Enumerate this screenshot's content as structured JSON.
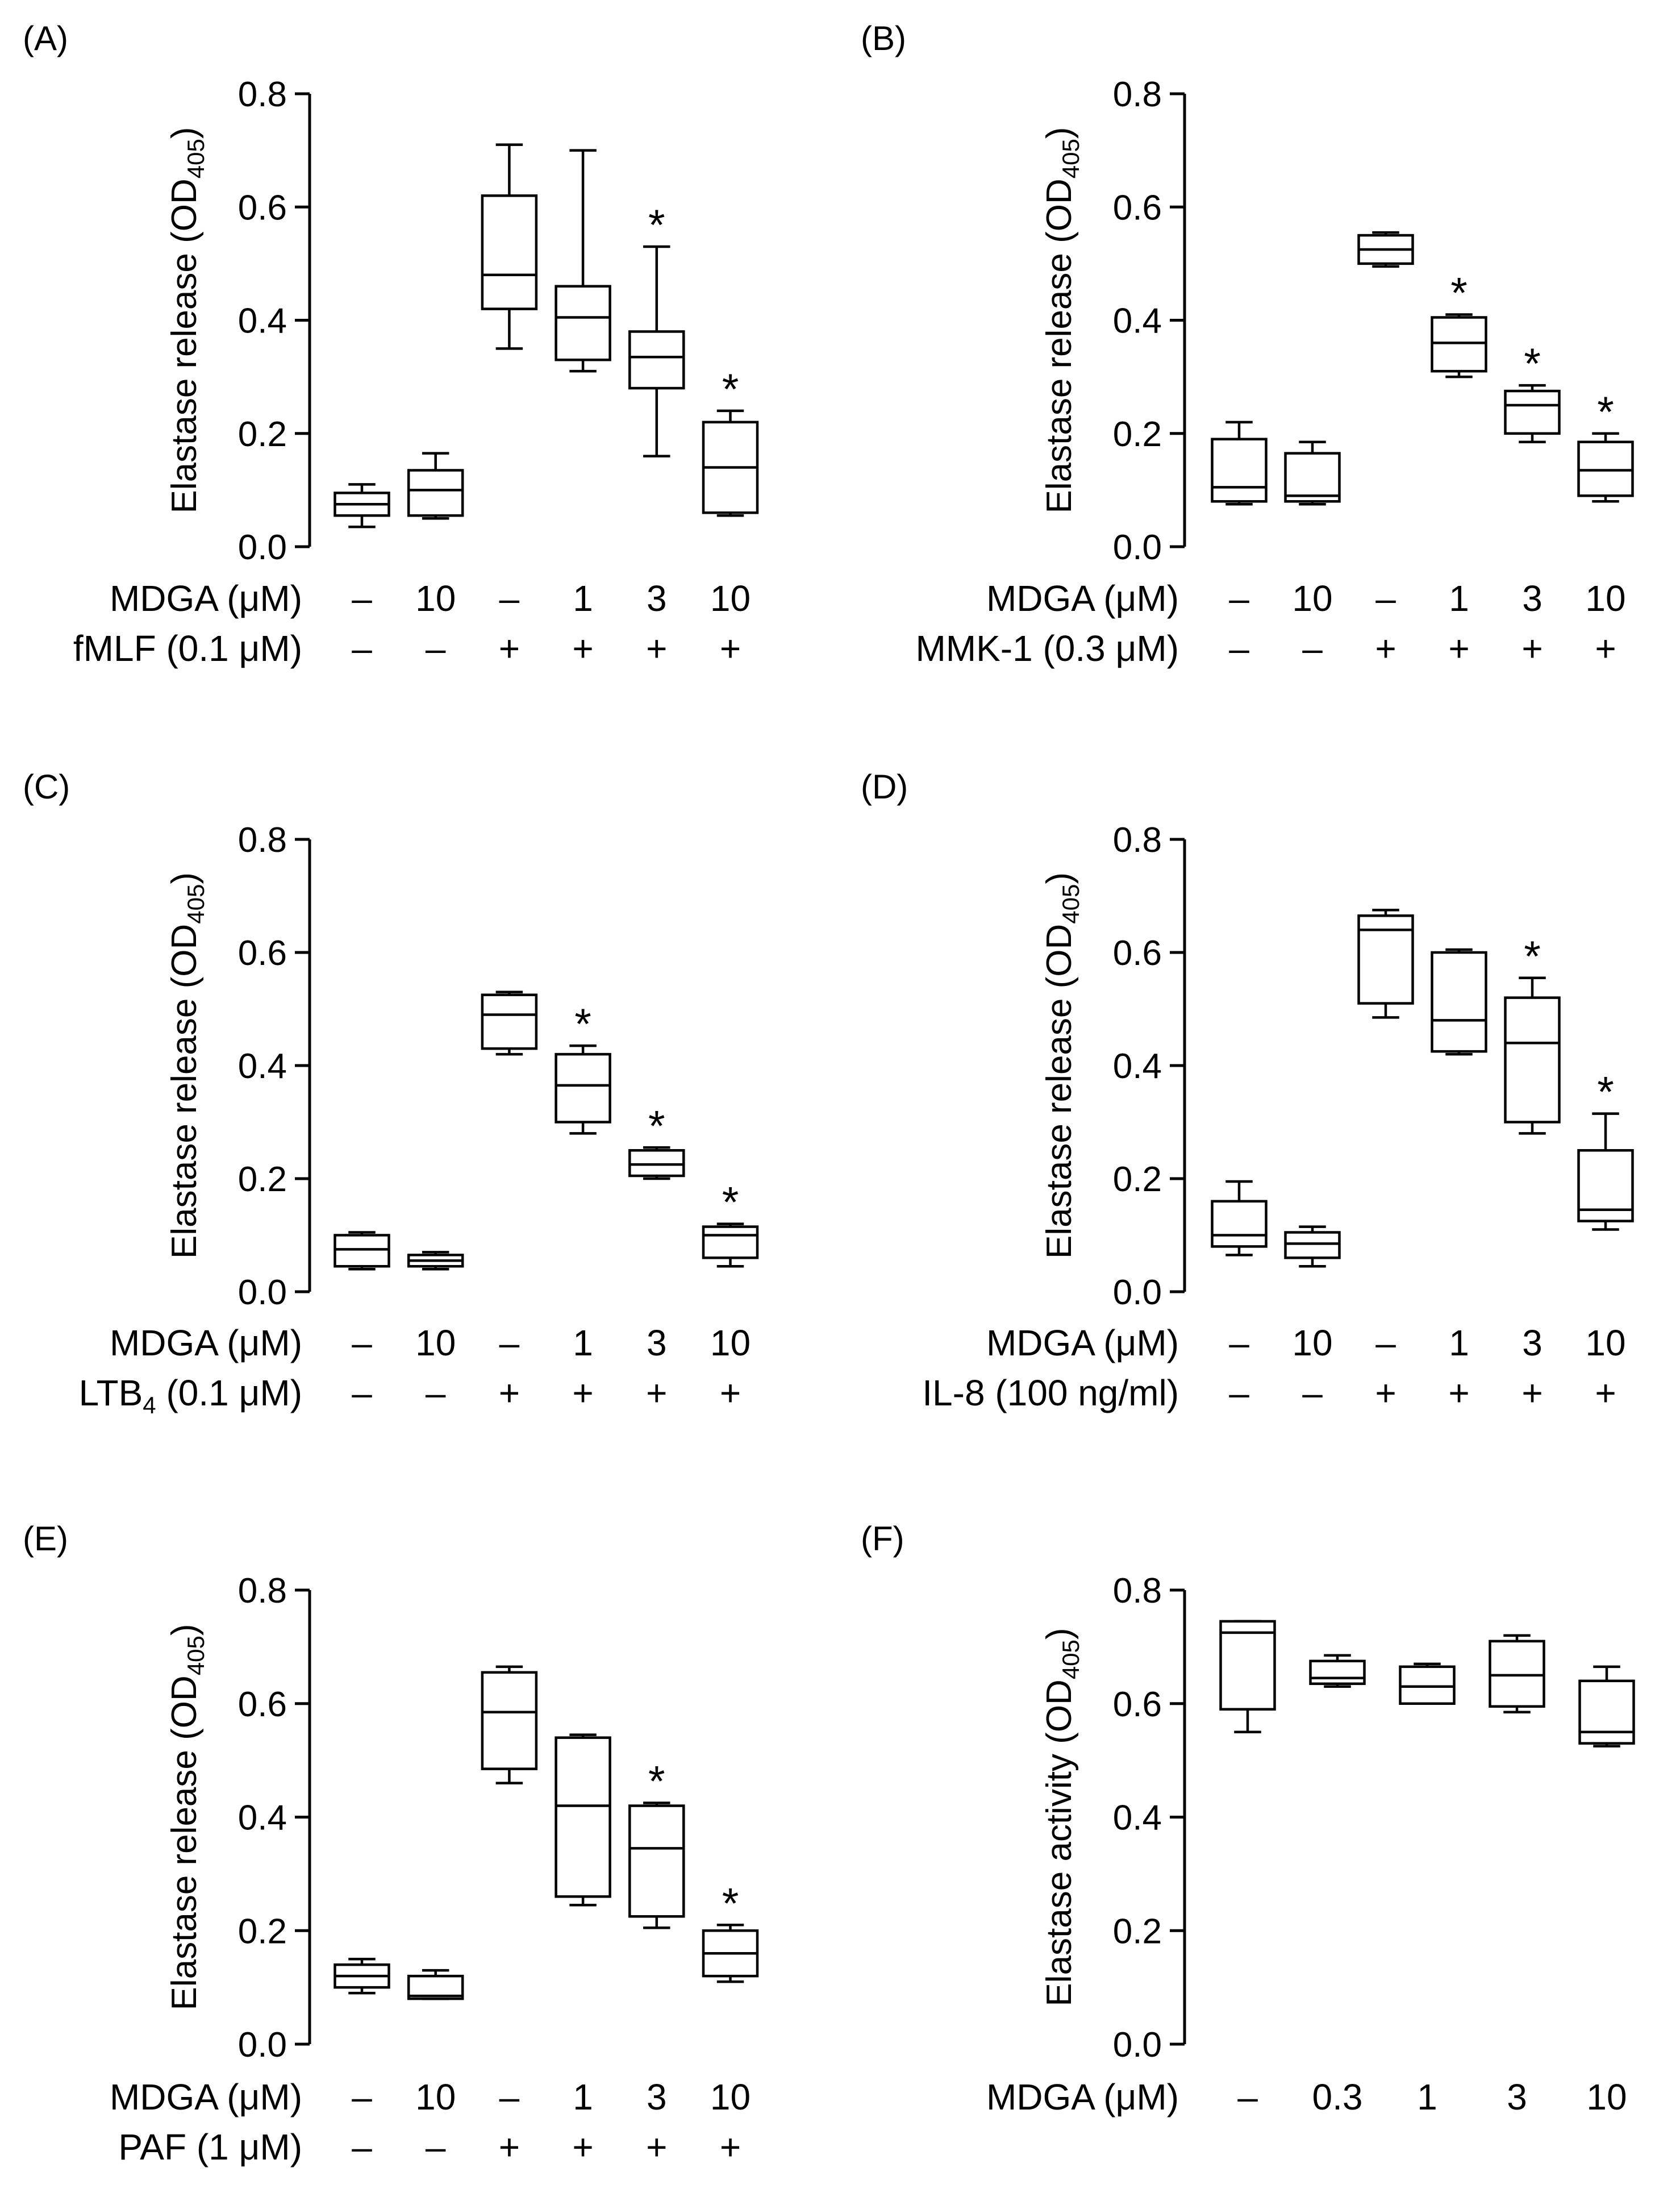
{
  "chart_data": [
    {
      "panel": "(A)",
      "type": "boxplot",
      "ylabel": "Elastase release (OD",
      "ylabel_sub": "405",
      "ylabel_end": ")",
      "ylim": [
        0,
        0.8
      ],
      "yticks": [
        "0.0",
        "0.2",
        "0.4",
        "0.6",
        "0.8"
      ],
      "rows": [
        {
          "label": "MDGA (μM)",
          "values": [
            "–",
            "10",
            "–",
            "1",
            "3",
            "10"
          ]
        },
        {
          "label": "fMLF (0.1 μM)",
          "values": [
            "–",
            "–",
            "+",
            "+",
            "+",
            "+"
          ]
        }
      ],
      "boxes": [
        {
          "min": 0.035,
          "q1": 0.055,
          "median": 0.075,
          "q3": 0.095,
          "max": 0.11,
          "sig": ""
        },
        {
          "min": 0.05,
          "q1": 0.055,
          "median": 0.1,
          "q3": 0.135,
          "max": 0.165,
          "sig": ""
        },
        {
          "min": 0.35,
          "q1": 0.42,
          "median": 0.48,
          "q3": 0.62,
          "max": 0.71,
          "sig": ""
        },
        {
          "min": 0.31,
          "q1": 0.33,
          "median": 0.405,
          "q3": 0.46,
          "max": 0.7,
          "sig": ""
        },
        {
          "min": 0.16,
          "q1": 0.28,
          "median": 0.335,
          "q3": 0.38,
          "max": 0.53,
          "sig": "*"
        },
        {
          "min": 0.055,
          "q1": 0.06,
          "median": 0.14,
          "q3": 0.22,
          "max": 0.24,
          "sig": "*"
        }
      ]
    },
    {
      "panel": "(B)",
      "type": "boxplot",
      "ylabel": "Elastase release (OD",
      "ylabel_sub": "405",
      "ylabel_end": ")",
      "ylim": [
        0,
        0.8
      ],
      "yticks": [
        "0.0",
        "0.2",
        "0.4",
        "0.6",
        "0.8"
      ],
      "rows": [
        {
          "label": "MDGA (μM)",
          "values": [
            "–",
            "10",
            "–",
            "1",
            "3",
            "10"
          ]
        },
        {
          "label": "MMK-1 (0.3 μM)",
          "values": [
            "–",
            "–",
            "+",
            "+",
            "+",
            "+"
          ]
        }
      ],
      "boxes": [
        {
          "min": 0.075,
          "q1": 0.08,
          "median": 0.105,
          "q3": 0.19,
          "max": 0.22,
          "sig": ""
        },
        {
          "min": 0.075,
          "q1": 0.08,
          "median": 0.09,
          "q3": 0.165,
          "max": 0.185,
          "sig": ""
        },
        {
          "min": 0.495,
          "q1": 0.5,
          "median": 0.525,
          "q3": 0.55,
          "max": 0.555,
          "sig": ""
        },
        {
          "min": 0.3,
          "q1": 0.31,
          "median": 0.36,
          "q3": 0.405,
          "max": 0.41,
          "sig": "*"
        },
        {
          "min": 0.185,
          "q1": 0.2,
          "median": 0.25,
          "q3": 0.275,
          "max": 0.285,
          "sig": "*"
        },
        {
          "min": 0.08,
          "q1": 0.09,
          "median": 0.135,
          "q3": 0.185,
          "max": 0.2,
          "sig": "*"
        }
      ]
    },
    {
      "panel": "(C)",
      "type": "boxplot",
      "ylabel": "Elastase release (OD",
      "ylabel_sub": "405",
      "ylabel_end": ")",
      "ylim": [
        0,
        0.8
      ],
      "yticks": [
        "0.0",
        "0.2",
        "0.4",
        "0.6",
        "0.8"
      ],
      "rows": [
        {
          "label": "MDGA (μM)",
          "values": [
            "–",
            "10",
            "–",
            "1",
            "3",
            "10"
          ]
        },
        {
          "label": "LTB",
          "label_sub": "4",
          "label_end": " (0.1 μM)",
          "values": [
            "–",
            "–",
            "+",
            "+",
            "+",
            "+"
          ]
        }
      ],
      "boxes": [
        {
          "min": 0.04,
          "q1": 0.045,
          "median": 0.075,
          "q3": 0.1,
          "max": 0.105,
          "sig": ""
        },
        {
          "min": 0.04,
          "q1": 0.045,
          "median": 0.055,
          "q3": 0.065,
          "max": 0.07,
          "sig": ""
        },
        {
          "min": 0.42,
          "q1": 0.43,
          "median": 0.49,
          "q3": 0.525,
          "max": 0.53,
          "sig": ""
        },
        {
          "min": 0.28,
          "q1": 0.3,
          "median": 0.365,
          "q3": 0.42,
          "max": 0.435,
          "sig": "*"
        },
        {
          "min": 0.2,
          "q1": 0.205,
          "median": 0.225,
          "q3": 0.25,
          "max": 0.255,
          "sig": "*"
        },
        {
          "min": 0.045,
          "q1": 0.06,
          "median": 0.1,
          "q3": 0.115,
          "max": 0.12,
          "sig": "*"
        }
      ]
    },
    {
      "panel": "(D)",
      "type": "boxplot",
      "ylabel": "Elastase release (OD",
      "ylabel_sub": "405",
      "ylabel_end": ")",
      "ylim": [
        0,
        0.8
      ],
      "yticks": [
        "0.0",
        "0.2",
        "0.4",
        "0.6",
        "0.8"
      ],
      "rows": [
        {
          "label": "MDGA (μM)",
          "values": [
            "–",
            "10",
            "–",
            "1",
            "3",
            "10"
          ]
        },
        {
          "label": "IL-8 (100 ng/ml)",
          "values": [
            "–",
            "–",
            "+",
            "+",
            "+",
            "+"
          ]
        }
      ],
      "boxes": [
        {
          "min": 0.065,
          "q1": 0.08,
          "median": 0.1,
          "q3": 0.16,
          "max": 0.195,
          "sig": ""
        },
        {
          "min": 0.045,
          "q1": 0.06,
          "median": 0.085,
          "q3": 0.105,
          "max": 0.115,
          "sig": ""
        },
        {
          "min": 0.485,
          "q1": 0.51,
          "median": 0.64,
          "q3": 0.665,
          "max": 0.675,
          "sig": ""
        },
        {
          "min": 0.42,
          "q1": 0.425,
          "median": 0.48,
          "q3": 0.6,
          "max": 0.605,
          "sig": ""
        },
        {
          "min": 0.28,
          "q1": 0.3,
          "median": 0.44,
          "q3": 0.52,
          "max": 0.555,
          "sig": "*"
        },
        {
          "min": 0.11,
          "q1": 0.125,
          "median": 0.145,
          "q3": 0.25,
          "max": 0.315,
          "sig": "*"
        }
      ]
    },
    {
      "panel": "(E)",
      "type": "boxplot",
      "ylabel": "Elastase release (OD",
      "ylabel_sub": "405",
      "ylabel_end": ")",
      "ylim": [
        0,
        0.8
      ],
      "yticks": [
        "0.0",
        "0.2",
        "0.4",
        "0.6",
        "0.8"
      ],
      "rows": [
        {
          "label": "MDGA (μM)",
          "values": [
            "–",
            "10",
            "–",
            "1",
            "3",
            "10"
          ]
        },
        {
          "label": "PAF (1 μM)",
          "values": [
            "–",
            "–",
            "+",
            "+",
            "+",
            "+"
          ]
        }
      ],
      "boxes": [
        {
          "min": 0.09,
          "q1": 0.1,
          "median": 0.12,
          "q3": 0.14,
          "max": 0.15,
          "sig": ""
        },
        {
          "min": 0.08,
          "q1": 0.08,
          "median": 0.085,
          "q3": 0.12,
          "max": 0.13,
          "sig": ""
        },
        {
          "min": 0.46,
          "q1": 0.485,
          "median": 0.585,
          "q3": 0.655,
          "max": 0.665,
          "sig": ""
        },
        {
          "min": 0.245,
          "q1": 0.26,
          "median": 0.42,
          "q3": 0.54,
          "max": 0.545,
          "sig": ""
        },
        {
          "min": 0.205,
          "q1": 0.225,
          "median": 0.345,
          "q3": 0.42,
          "max": 0.425,
          "sig": "*"
        },
        {
          "min": 0.11,
          "q1": 0.12,
          "median": 0.16,
          "q3": 0.2,
          "max": 0.21,
          "sig": "*"
        }
      ]
    },
    {
      "panel": "(F)",
      "type": "boxplot",
      "ylabel": "Elastase activity (OD",
      "ylabel_sub": "405",
      "ylabel_end": ")",
      "ylim": [
        0,
        0.8
      ],
      "yticks": [
        "0.0",
        "0.2",
        "0.4",
        "0.6",
        "0.8"
      ],
      "rows": [
        {
          "label": "MDGA (μM)",
          "values": [
            "–",
            "0.3",
            "1",
            "3",
            "10"
          ]
        }
      ],
      "boxes": [
        {
          "min": 0.55,
          "q1": 0.59,
          "median": 0.725,
          "q3": 0.745,
          "max": 0.745,
          "sig": ""
        },
        {
          "min": 0.63,
          "q1": 0.635,
          "median": 0.645,
          "q3": 0.675,
          "max": 0.685,
          "sig": ""
        },
        {
          "min": 0.6,
          "q1": 0.6,
          "median": 0.63,
          "q3": 0.665,
          "max": 0.67,
          "sig": ""
        },
        {
          "min": 0.585,
          "q1": 0.595,
          "median": 0.65,
          "q3": 0.71,
          "max": 0.72,
          "sig": ""
        },
        {
          "min": 0.525,
          "q1": 0.53,
          "median": 0.55,
          "q3": 0.64,
          "max": 0.665,
          "sig": ""
        }
      ]
    }
  ]
}
